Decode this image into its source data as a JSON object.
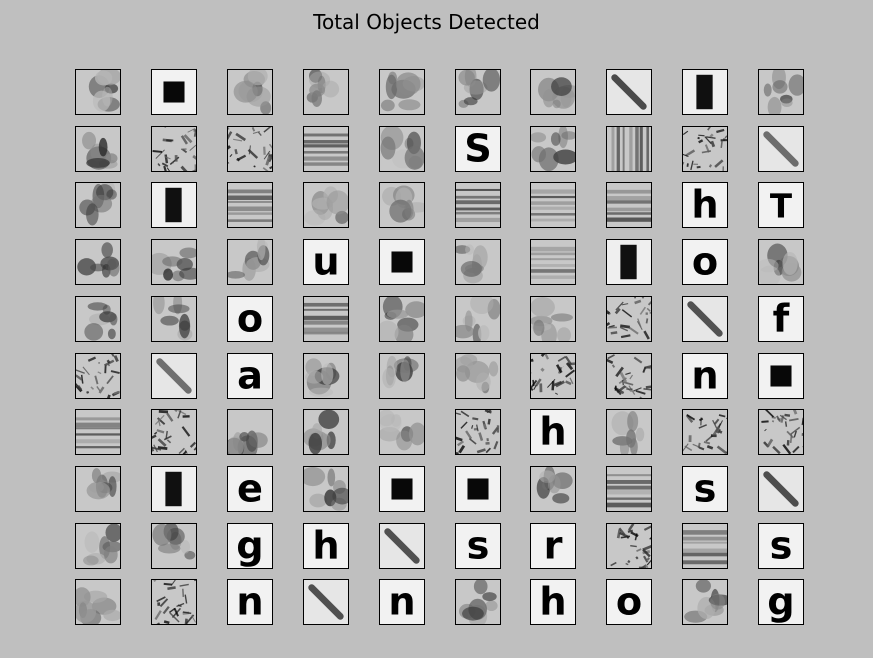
{
  "title": "Total Objects Detected",
  "grid": {
    "rows": 10,
    "cols": 10,
    "cells": [
      [
        "blur",
        "square",
        "blur",
        "blur",
        "blur",
        "blur",
        "blur",
        "stroke",
        "bar",
        "blur"
      ],
      [
        "blur",
        "texture",
        "texture",
        "hlines",
        "blur",
        "S",
        "blur",
        "vlines",
        "texture",
        "stroke"
      ],
      [
        "blur",
        "bar",
        "hlines",
        "blur",
        "blur",
        "hlines",
        "hlines",
        "hlines",
        "h",
        "T"
      ],
      [
        "blur",
        "blur",
        "blur",
        "u",
        "square",
        "blur",
        "hlines",
        "bar",
        "o",
        "blur"
      ],
      [
        "blur",
        "blur",
        "o",
        "hlines",
        "blur",
        "blur",
        "blur",
        "texture",
        "stroke",
        "f"
      ],
      [
        "texture",
        "stroke",
        "a",
        "blur",
        "blur",
        "blur",
        "texture",
        "texture",
        "n",
        "square"
      ],
      [
        "hlines",
        "texture",
        "blur",
        "blur",
        "blur",
        "texture",
        "h",
        "blur",
        "texture",
        "texture"
      ],
      [
        "blur",
        "bar",
        "e",
        "blur",
        "square",
        "square",
        "blur",
        "hlines",
        "s",
        "stroke"
      ],
      [
        "blur",
        "blur",
        "g",
        "h",
        "stroke",
        "s",
        "r",
        "texture",
        "hlines",
        "s"
      ],
      [
        "blur",
        "texture",
        "n",
        "stroke",
        "n",
        "blur",
        "h",
        "o",
        "blur",
        "g"
      ]
    ]
  }
}
